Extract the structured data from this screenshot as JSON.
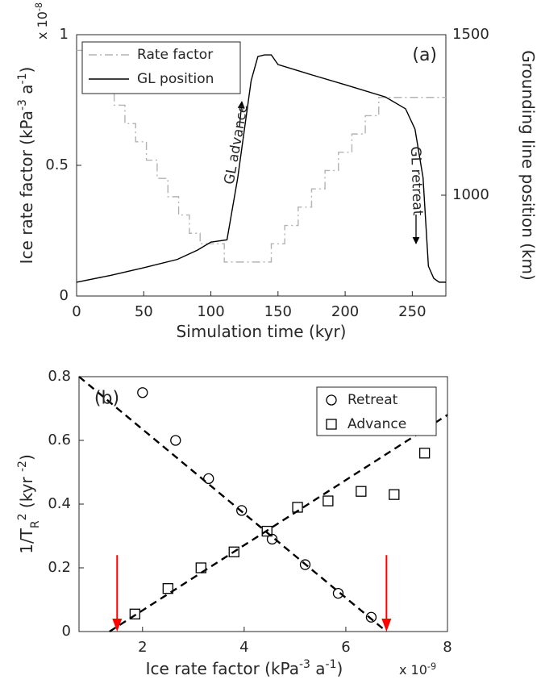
{
  "chart_data": [
    {
      "type": "line",
      "x_label": "Simulation time (kyr)",
      "y_label": [
        {
          "text": "Ice rate factor (kPa"
        },
        {
          "text": "-3",
          "shift": "sup"
        },
        {
          "text": " a"
        },
        {
          "text": "-1",
          "shift": "sup"
        },
        {
          "text": ")"
        }
      ],
      "y_exponent": [
        {
          "text": "x 10"
        },
        {
          "text": "-8",
          "shift": "sup"
        }
      ],
      "y2_label": "Grounding line position (km)",
      "xlim": [
        0,
        275
      ],
      "xticks": [
        0,
        50,
        100,
        150,
        200,
        250
      ],
      "ylim": [
        0,
        1
      ],
      "yticks": [
        0,
        0.5,
        1
      ],
      "y2lim": [
        686,
        1500
      ],
      "y2ticks": [
        1000,
        1500
      ],
      "grid": false,
      "legend": "upper left",
      "series": [
        {
          "name": "Rate factor",
          "color": "#b3b3b3",
          "dash": "dashdot",
          "x": [
            0,
            12,
            12,
            20,
            20,
            28,
            28,
            36,
            36,
            44,
            44,
            52,
            52,
            60,
            60,
            68,
            68,
            76,
            76,
            84,
            84,
            92,
            92,
            110,
            110,
            145,
            145,
            155,
            155,
            165,
            165,
            175,
            175,
            185,
            185,
            195,
            195,
            205,
            205,
            215,
            215,
            225,
            225,
            275
          ],
          "values": [
            0.94,
            0.94,
            0.87,
            0.87,
            0.8,
            0.8,
            0.73,
            0.73,
            0.66,
            0.66,
            0.59,
            0.59,
            0.52,
            0.52,
            0.45,
            0.45,
            0.38,
            0.38,
            0.31,
            0.31,
            0.24,
            0.24,
            0.2,
            0.2,
            0.13,
            0.13,
            0.2,
            0.2,
            0.27,
            0.27,
            0.34,
            0.34,
            0.41,
            0.41,
            0.48,
            0.48,
            0.55,
            0.55,
            0.62,
            0.62,
            0.69,
            0.69,
            0.76,
            0.76
          ]
        },
        {
          "name": "GL position",
          "color": "#000000",
          "dash": "solid",
          "axis": "y2",
          "x": [
            0,
            25,
            50,
            75,
            90,
            100,
            112,
            120,
            130,
            135,
            140,
            145,
            150,
            175,
            200,
            230,
            245,
            252,
            258,
            262,
            266,
            270,
            275
          ],
          "values": [
            729,
            750,
            774,
            800,
            829,
            854,
            861,
            1054,
            1357,
            1432,
            1437,
            1437,
            1407,
            1375,
            1344,
            1306,
            1269,
            1206,
            1055,
            779,
            741,
            729,
            729
          ]
        }
      ],
      "annotations": [
        {
          "text": "(a)",
          "x": 250,
          "y": 0.92
        },
        {
          "text": "GL advance",
          "x": 119,
          "y": 0.58
        },
        {
          "text": "GL retreat",
          "x": 253,
          "y": 0.44
        }
      ]
    },
    {
      "type": "scatter",
      "x_label": [
        {
          "text": "Ice rate factor (kPa"
        },
        {
          "text": "-3",
          "shift": "sup"
        },
        {
          "text": " a"
        },
        {
          "text": "-1",
          "shift": "sup"
        },
        {
          "text": ")"
        }
      ],
      "x_exponent": [
        {
          "text": "x 10"
        },
        {
          "text": "-9",
          "shift": "sup"
        }
      ],
      "y_label": [
        {
          "text": "1/T"
        },
        {
          "text": "R",
          "shift": "sub"
        },
        {
          "text": "2",
          "shift": "sup"
        },
        {
          "text": " (kyr "
        },
        {
          "text": "-2",
          "shift": "sup"
        },
        {
          "text": ")"
        }
      ],
      "xlim": [
        0.75,
        8
      ],
      "xticks": [
        2,
        4,
        6,
        8
      ],
      "ylim": [
        0,
        0.8
      ],
      "yticks": [
        0,
        0.2,
        0.4,
        0.6,
        0.8
      ],
      "grid": false,
      "legend": "upper right",
      "series": [
        {
          "name": "Retreat",
          "color": "#000000",
          "marker": "circle",
          "x": [
            2.0,
            2.65,
            3.3,
            3.95,
            4.55,
            5.2,
            5.85,
            6.5
          ],
          "values": [
            0.75,
            0.6,
            0.48,
            0.38,
            0.29,
            0.21,
            0.12,
            0.045
          ]
        },
        {
          "name": "Advance",
          "color": "#000000",
          "marker": "square",
          "x": [
            1.85,
            2.5,
            3.15,
            3.8,
            4.45,
            5.05,
            5.65,
            6.3,
            6.95,
            7.55
          ],
          "values": [
            0.055,
            0.135,
            0.2,
            0.25,
            0.315,
            0.39,
            0.41,
            0.44,
            0.43,
            0.56
          ]
        },
        {
          "color": "#000000",
          "dash": "dashed",
          "x": [
            0.75,
            6.8
          ],
          "values": [
            0.8,
            0
          ]
        },
        {
          "color": "#000000",
          "dash": "dashed",
          "x": [
            1.35,
            8
          ],
          "values": [
            0,
            0.68
          ]
        }
      ],
      "arrows": [
        {
          "x": 1.5,
          "y": [
            0.24,
            0
          ],
          "color": "#ff0000"
        },
        {
          "x": 6.8,
          "y": [
            0.24,
            0
          ],
          "color": "#ff0000"
        }
      ],
      "annotations": [
        {
          "text": "(b)",
          "x": 1.05,
          "y": 0.73
        }
      ]
    }
  ]
}
